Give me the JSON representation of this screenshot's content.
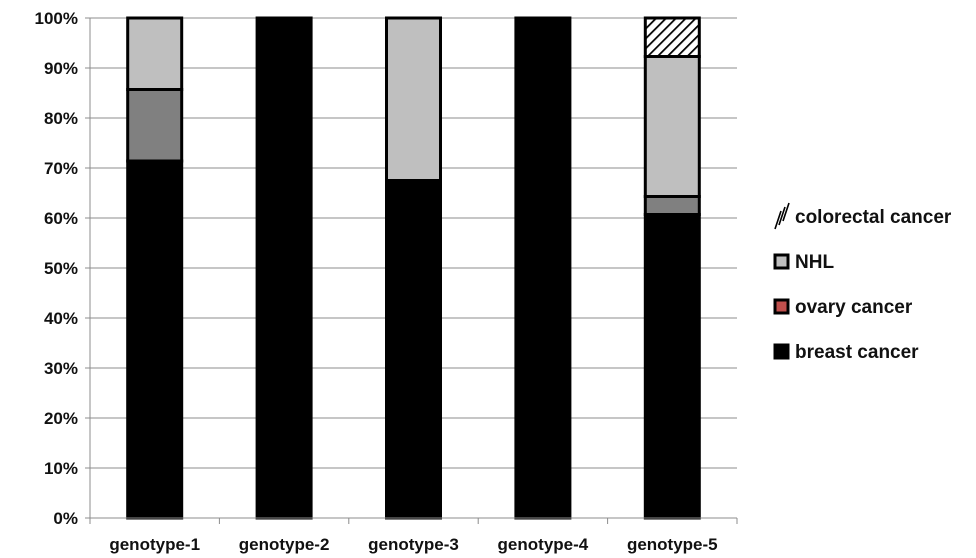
{
  "chart_data": {
    "type": "bar",
    "stacked": true,
    "percent": true,
    "categories": [
      "genotype-1",
      "genotype-2",
      "genotype-3",
      "genotype-4",
      "genotype-5"
    ],
    "series": [
      {
        "name": "breast cancer",
        "values": [
          71.4,
          100,
          67.5,
          100,
          60.7
        ],
        "color": "#000000",
        "pattern": "solid"
      },
      {
        "name": "ovary cancer",
        "values": [
          14.3,
          0,
          0,
          0,
          3.6
        ],
        "color": "#808080",
        "legend_color": "#c0504d",
        "pattern": "solid"
      },
      {
        "name": "NHL",
        "values": [
          14.3,
          0,
          32.5,
          0,
          28.0
        ],
        "color": "#bfbfbf",
        "pattern": "solid"
      },
      {
        "name": "colorectal cancer",
        "values": [
          0,
          0,
          0,
          0,
          7.7
        ],
        "color": "#ffffff",
        "pattern": "hatch"
      }
    ],
    "ylim": [
      0,
      100
    ],
    "y_ticks": [
      "0%",
      "10%",
      "20%",
      "30%",
      "40%",
      "50%",
      "60%",
      "70%",
      "80%",
      "90%",
      "100%"
    ],
    "y_tick_values": [
      0,
      10,
      20,
      30,
      40,
      50,
      60,
      70,
      80,
      90,
      100
    ],
    "grid": true,
    "legend_position": "right",
    "legend_order": [
      "colorectal cancer",
      "NHL",
      "ovary cancer",
      "breast cancer"
    ]
  }
}
